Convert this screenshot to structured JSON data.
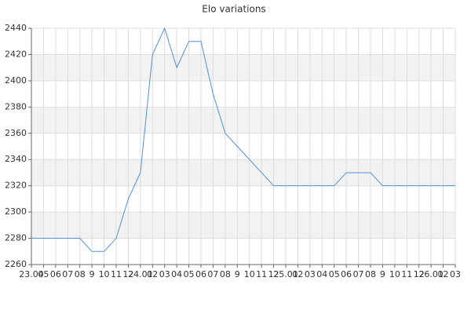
{
  "chart_data": {
    "type": "line",
    "title": "Elo variations",
    "categories": [
      "23.04",
      "05",
      "06",
      "07",
      "08",
      "9",
      "10",
      "11",
      "12",
      "24.01",
      "02",
      "03",
      "04",
      "05",
      "06",
      "07",
      "08",
      "9",
      "10",
      "11",
      "12",
      "25.01",
      "02",
      "03",
      "04",
      "05",
      "06",
      "07",
      "08",
      "9",
      "10",
      "11",
      "12",
      "26.01",
      "02",
      "03"
    ],
    "series": [
      {
        "color": "#4f8fdc",
        "values": [
          2280,
          2280,
          2280,
          2280,
          2280,
          2270,
          2270,
          2280,
          2310,
          2330,
          2420,
          2440,
          2410,
          2430,
          2430,
          2390,
          2360,
          2350,
          2340,
          2330,
          2320,
          2320,
          2320,
          2320,
          2320,
          2320,
          2330,
          2330,
          2330,
          2320,
          2320,
          2320,
          2320,
          2320,
          2320,
          2320
        ]
      }
    ],
    "ylim": [
      2260,
      2440
    ],
    "yticks": [
      2260,
      2280,
      2300,
      2320,
      2340,
      2360,
      2380,
      2400,
      2420,
      2440
    ],
    "grid": true
  }
}
